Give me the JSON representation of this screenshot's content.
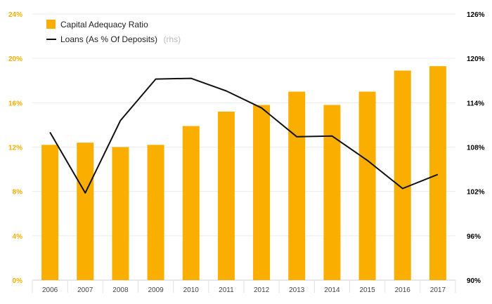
{
  "chart_data": {
    "type": "bar",
    "categories": [
      "2006",
      "2007",
      "2008",
      "2009",
      "2010",
      "2011",
      "2012",
      "2013",
      "2014",
      "2015",
      "2016",
      "2017"
    ],
    "series": [
      {
        "name": "Capital Adequacy Ratio",
        "type": "bar",
        "axis": "left",
        "color": "#f9ae00",
        "values": [
          12.2,
          12.4,
          12.0,
          12.2,
          13.9,
          15.2,
          15.8,
          17.0,
          15.8,
          17.0,
          18.9,
          19.3
        ]
      },
      {
        "name": "Loans (As % Of Deposits)",
        "name_suffix": "(rhs)",
        "type": "line",
        "axis": "right",
        "color": "#111111",
        "values": [
          110.0,
          101.8,
          111.6,
          117.2,
          117.3,
          115.6,
          113.3,
          109.4,
          109.5,
          106.2,
          102.4,
          104.3
        ]
      }
    ],
    "y_left": {
      "min": 0,
      "max": 24,
      "ticks": [
        0,
        4,
        8,
        12,
        16,
        20,
        24
      ],
      "tick_labels": [
        "0%",
        "4%",
        "8%",
        "12%",
        "16%",
        "20%",
        "24%"
      ],
      "color": "#f5ad00"
    },
    "y_right": {
      "min": 90,
      "max": 126,
      "ticks": [
        90,
        96,
        102,
        108,
        114,
        120,
        126
      ],
      "tick_labels": [
        "90%",
        "96%",
        "102%",
        "108%",
        "114%",
        "120%",
        "126%"
      ],
      "color": "#000000"
    },
    "grid": true,
    "legend": "top-left"
  }
}
